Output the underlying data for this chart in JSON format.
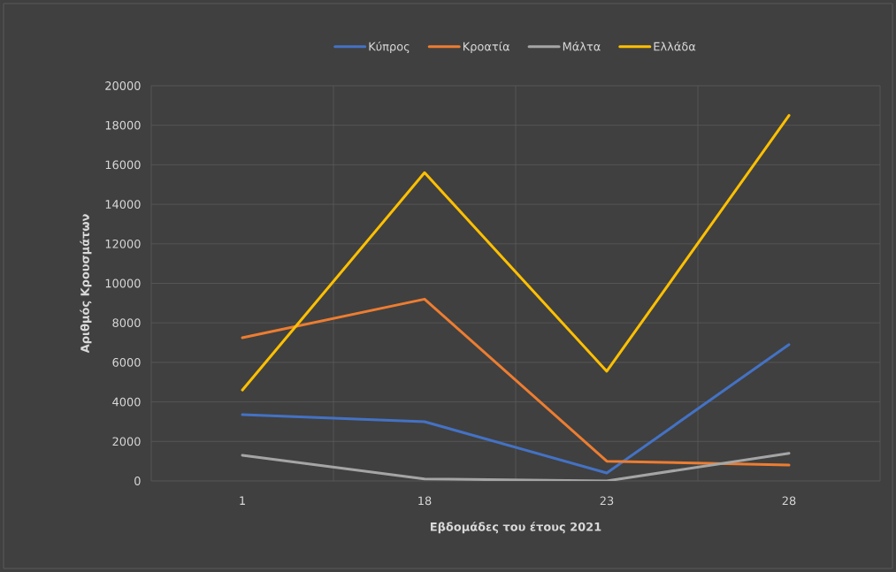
{
  "chart_data": {
    "type": "line",
    "xlabel": "Εβδομάδες του έτους 2021",
    "ylabel": "Αριθμός Κρουσμάτων",
    "categories": [
      "1",
      "18",
      "23",
      "28"
    ],
    "series": [
      {
        "name": "Κύπρος",
        "color": "#4472c4",
        "values": [
          3350,
          3000,
          400,
          6900
        ]
      },
      {
        "name": "Κροατία",
        "color": "#ed7d31",
        "values": [
          7250,
          9200,
          1000,
          800
        ]
      },
      {
        "name": "Μάλτα",
        "color": "#a5a5a5",
        "values": [
          1300,
          100,
          0,
          1400
        ]
      },
      {
        "name": "Ελλάδα",
        "color": "#ffc000",
        "values": [
          4600,
          15600,
          5550,
          18500
        ]
      }
    ],
    "ylim": [
      0,
      20000
    ],
    "yticks": [
      0,
      2000,
      4000,
      6000,
      8000,
      10000,
      12000,
      14000,
      16000,
      18000,
      20000
    ],
    "grid": true,
    "legend": "top",
    "marker": "none",
    "line_style": "solid"
  }
}
